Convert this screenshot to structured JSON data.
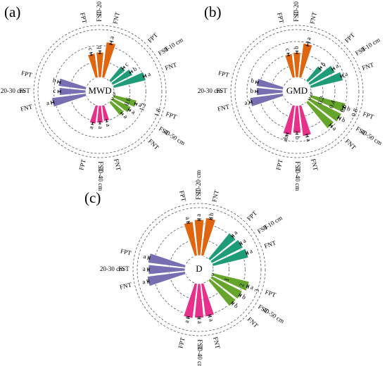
{
  "colors": {
    "10-20 cm": "#e0650f",
    "0-10 cm": "#1e9b78",
    "40-50 cm": "#66a52b",
    "30-40 cm": "#e6308a",
    "20-30 cm": "#7670b3"
  },
  "chart_data": [
    {
      "panel": "(a)",
      "type": "bar",
      "polar": true,
      "center_label": "MWD",
      "rticks": [
        "0.0",
        "0.6",
        "1.2",
        "1.8"
      ],
      "rlim": [
        0,
        1.8
      ],
      "groups": [
        {
          "depth": "10-20 cm",
          "treatments": [
            "FPT",
            "FST",
            "FNT"
          ],
          "values": [
            0.92,
            0.95,
            1.35
          ],
          "errors": [
            0.05,
            0.05,
            0.06
          ],
          "letters": [
            "c",
            "b",
            "a"
          ]
        },
        {
          "depth": "0-10 cm",
          "treatments": [
            "FPT",
            "FST",
            "FNT"
          ],
          "values": [
            0.72,
            0.85,
            1.25
          ],
          "errors": [
            0.05,
            0.05,
            0.05
          ],
          "letters": [
            "c",
            "b",
            "a"
          ]
        },
        {
          "depth": "40-50 cm",
          "treatments": [
            "FPT",
            "FST",
            "FNT"
          ],
          "values": [
            0.9,
            0.78,
            0.65
          ],
          "errors": [
            0.04,
            0.04,
            0.04
          ],
          "letters": [
            "a",
            "a",
            "a"
          ]
        },
        {
          "depth": "30-40 cm",
          "treatments": [
            "FNT",
            "FST",
            "FPT"
          ],
          "values": [
            0.6,
            0.65,
            0.7
          ],
          "errors": [
            0.04,
            0.04,
            0.04
          ],
          "letters": [
            "a",
            "a",
            "a"
          ]
        },
        {
          "depth": "20-30 cm",
          "treatments": [
            "FNT",
            "FST",
            "FPT"
          ],
          "values": [
            1.3,
            1.0,
            1.05
          ],
          "errors": [
            0.05,
            0.05,
            0.05
          ],
          "letters": [
            "a",
            "c",
            "b"
          ]
        }
      ]
    },
    {
      "panel": "(b)",
      "type": "bar",
      "polar": true,
      "center_label": "GMD",
      "rticks": [
        "0.0",
        "0.2",
        "0.4",
        "0.6",
        "0.8"
      ],
      "rlim": [
        0,
        0.8
      ],
      "groups": [
        {
          "depth": "10-20 cm",
          "treatments": [
            "FPT",
            "FST",
            "FNT"
          ],
          "values": [
            0.4,
            0.42,
            0.58
          ],
          "errors": [
            0.02,
            0.02,
            0.03
          ],
          "letters": [
            "c",
            "b",
            "a"
          ]
        },
        {
          "depth": "0-10 cm",
          "treatments": [
            "FPT",
            "FST",
            "FNT"
          ],
          "values": [
            0.32,
            0.48,
            0.56
          ],
          "errors": [
            0.02,
            0.02,
            0.02
          ],
          "letters": [
            "b",
            "a",
            "a"
          ]
        },
        {
          "depth": "40-50 cm",
          "treatments": [
            "FPT",
            "FST",
            "FNT"
          ],
          "values": [
            0.6,
            0.6,
            0.57
          ],
          "errors": [
            0.02,
            0.02,
            0.02
          ],
          "letters": [
            "b",
            "b",
            "a"
          ]
        },
        {
          "depth": "30-40 cm",
          "treatments": [
            "FNT",
            "FST",
            "FPT"
          ],
          "values": [
            0.52,
            0.46,
            0.5
          ],
          "errors": [
            0.02,
            0.02,
            0.02
          ],
          "letters": [
            "a",
            "b",
            "ab"
          ]
        },
        {
          "depth": "20-30 cm",
          "treatments": [
            "FNT",
            "FST",
            "FPT"
          ],
          "values": [
            0.56,
            0.44,
            0.45
          ],
          "errors": [
            0.02,
            0.02,
            0.02
          ],
          "letters": [
            "a",
            "b",
            "b"
          ]
        }
      ]
    },
    {
      "panel": "(c)",
      "type": "bar",
      "polar": true,
      "center_label": "D",
      "rticks": [
        "0",
        "1",
        "2",
        "3"
      ],
      "rlim": [
        0,
        3
      ],
      "groups": [
        {
          "depth": "10-20 cm",
          "treatments": [
            "FPT",
            "FST",
            "FNT"
          ],
          "values": [
            2.15,
            2.25,
            2.4
          ],
          "errors": [
            0.05,
            0.05,
            0.05
          ],
          "letters": [
            "a",
            "a",
            "b"
          ]
        },
        {
          "depth": "0-10 cm",
          "treatments": [
            "FPT",
            "FST",
            "FNT"
          ],
          "values": [
            2.1,
            2.2,
            2.3
          ],
          "errors": [
            0.05,
            0.05,
            0.05
          ],
          "letters": [
            "a",
            "a",
            "a"
          ]
        },
        {
          "depth": "40-50 cm",
          "treatments": [
            "FPT",
            "FST",
            "FNT"
          ],
          "values": [
            2.35,
            2.15,
            2.1
          ],
          "errors": [
            0.05,
            0.05,
            0.05
          ],
          "letters": [
            "a",
            "b",
            "b"
          ]
        },
        {
          "depth": "30-40 cm",
          "treatments": [
            "FNT",
            "FST",
            "FPT"
          ],
          "values": [
            2.1,
            2.15,
            2.2
          ],
          "errors": [
            0.05,
            0.05,
            0.05
          ],
          "letters": [
            "a",
            "a",
            "a"
          ]
        },
        {
          "depth": "20-30 cm",
          "treatments": [
            "FNT",
            "FST",
            "FPT"
          ],
          "values": [
            2.4,
            2.3,
            2.35
          ],
          "errors": [
            0.05,
            0.05,
            0.05
          ],
          "letters": [
            "a",
            "a",
            "a"
          ]
        }
      ]
    }
  ]
}
